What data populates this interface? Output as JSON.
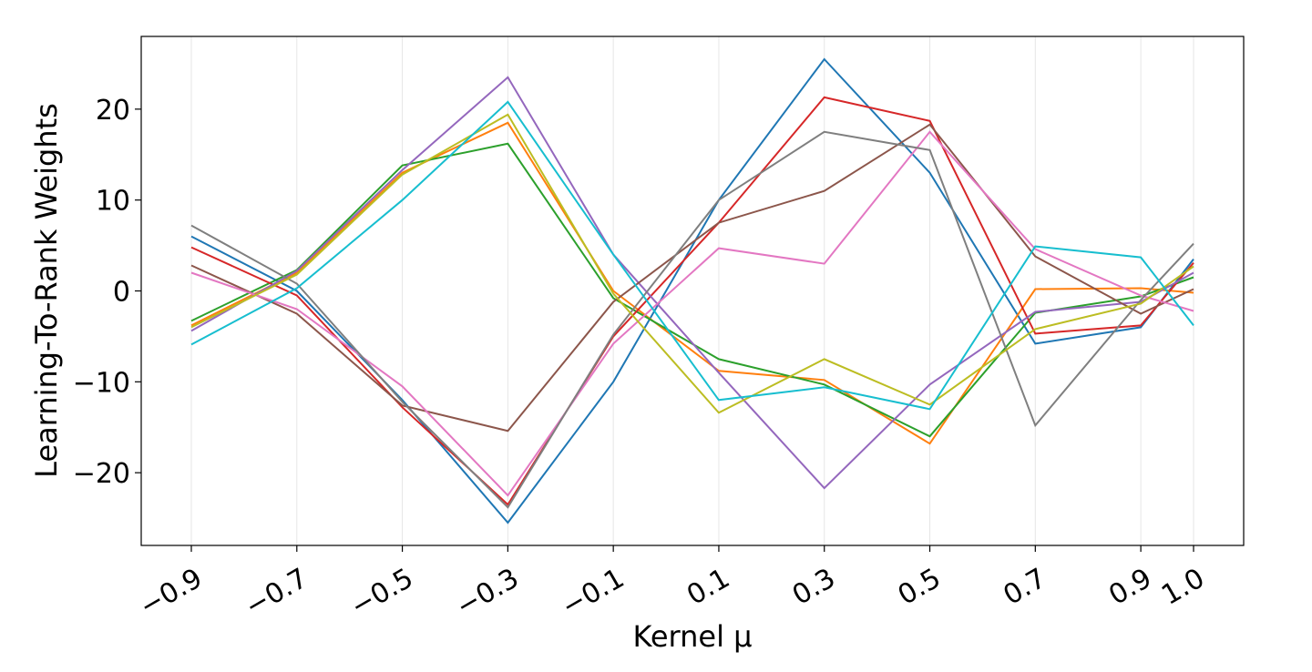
{
  "chart_data": {
    "type": "line",
    "title": "",
    "xlabel": "Kernel μ",
    "ylabel": "Learning-To-Rank Weights",
    "x": [
      -0.9,
      -0.7,
      -0.5,
      -0.3,
      -0.1,
      0.1,
      0.3,
      0.5,
      0.7,
      0.9,
      1.0
    ],
    "x_tick_labels": [
      "−0.9",
      "−0.7",
      "−0.5",
      "−0.3",
      "−0.1",
      "0.1",
      "0.3",
      "0.5",
      "0.7",
      "0.9",
      "1.0"
    ],
    "y_ticks": [
      -20,
      -10,
      0,
      10,
      20
    ],
    "y_tick_labels": [
      "−20",
      "−10",
      "0",
      "10",
      "20"
    ],
    "xlim": [
      -0.995,
      1.095
    ],
    "ylim": [
      -28,
      28
    ],
    "grid": "vertical",
    "legend": "none",
    "series": [
      {
        "color": "#1f77b4",
        "values": [
          6,
          0,
          -12,
          -25.5,
          -10,
          10,
          25.5,
          13,
          -5.8,
          -4,
          3.5
        ]
      },
      {
        "color": "#ff7f0e",
        "values": [
          -3.8,
          2,
          13,
          18.5,
          0,
          -8.8,
          -9.8,
          -16.8,
          0.2,
          0.3,
          -0.2
        ]
      },
      {
        "color": "#2ca02c",
        "values": [
          -3.3,
          2.3,
          13.8,
          16.2,
          -0.8,
          -7.5,
          -10.3,
          -16,
          -2.4,
          -0.6,
          1.5
        ]
      },
      {
        "color": "#d62728",
        "values": [
          4.8,
          -0.5,
          -12.8,
          -23.5,
          -5,
          7.5,
          21.3,
          18.7,
          -4.7,
          -3.8,
          3.1
        ]
      },
      {
        "color": "#9467bd",
        "values": [
          -4.4,
          2.2,
          13.3,
          23.5,
          4,
          -9,
          -21.7,
          -10.3,
          -2.3,
          -1.2,
          2
        ]
      },
      {
        "color": "#8c564b",
        "values": [
          2.8,
          -2.5,
          -12.6,
          -15.4,
          -1.2,
          7.5,
          11,
          18.3,
          3.8,
          -2.5,
          0.2
        ]
      },
      {
        "color": "#e377c2",
        "values": [
          2,
          -2,
          -10.5,
          -22.5,
          -5.8,
          4.7,
          3,
          17.5,
          4.6,
          -0.5,
          -2.2
        ]
      },
      {
        "color": "#7f7f7f",
        "values": [
          7.2,
          0.8,
          -12.2,
          -23.8,
          -4.8,
          10,
          17.5,
          15.5,
          -14.8,
          -1,
          5.2
        ]
      },
      {
        "color": "#bcbd22",
        "values": [
          -4,
          1.8,
          12.8,
          19.4,
          -0.3,
          -13.4,
          -7.5,
          -12.5,
          -4.2,
          -1.4,
          2.7
        ]
      },
      {
        "color": "#17becf",
        "values": [
          -5.9,
          0.3,
          10,
          20.8,
          4,
          -12,
          -10.6,
          -13,
          4.9,
          3.7,
          -3.8
        ]
      }
    ]
  }
}
